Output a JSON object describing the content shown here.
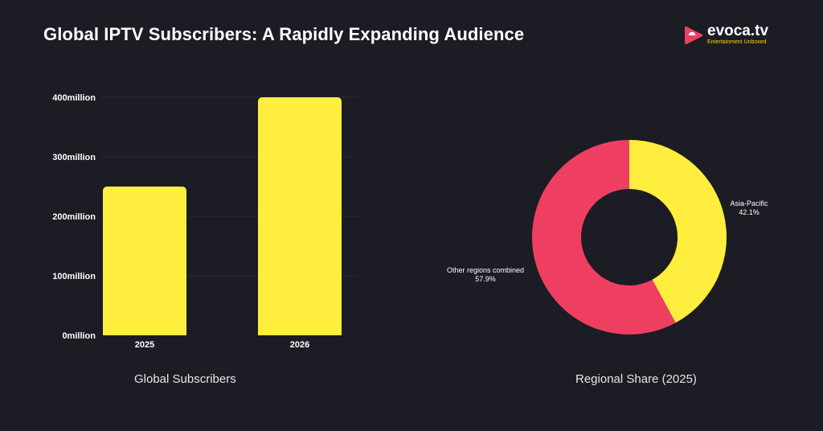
{
  "header": {
    "title": "Global IPTV Subscribers: A Rapidly Expanding Audience"
  },
  "logo": {
    "name": "evoca.tv",
    "tagline": "Entertainment Unboxed",
    "icon": "play-triangle-icon"
  },
  "colors": {
    "background": "#1b1c24",
    "yellow": "#ffee3d",
    "pink": "#ee3f63",
    "brand_yellow": "#ffd400"
  },
  "chart_data": [
    {
      "type": "bar",
      "caption": "Global Subscribers",
      "categories": [
        "2025",
        "2026"
      ],
      "values": [
        250,
        400
      ],
      "ytick_labels": [
        "0million",
        "100million",
        "200million",
        "300million",
        "400million"
      ],
      "yticks": [
        0,
        100,
        200,
        300,
        400
      ],
      "ylim": [
        0,
        400
      ],
      "grid": true,
      "color": "#ffee3d"
    },
    {
      "type": "pie",
      "style": "donut",
      "caption": "Regional Share (2025)",
      "slices": [
        {
          "label": "Asia-Pacific",
          "value": 42.1,
          "value_label": "42.1%",
          "color": "#ffee3d"
        },
        {
          "label": "Other regions combined",
          "value": 57.9,
          "value_label": "57.9%",
          "color": "#ee3f63"
        }
      ]
    }
  ]
}
